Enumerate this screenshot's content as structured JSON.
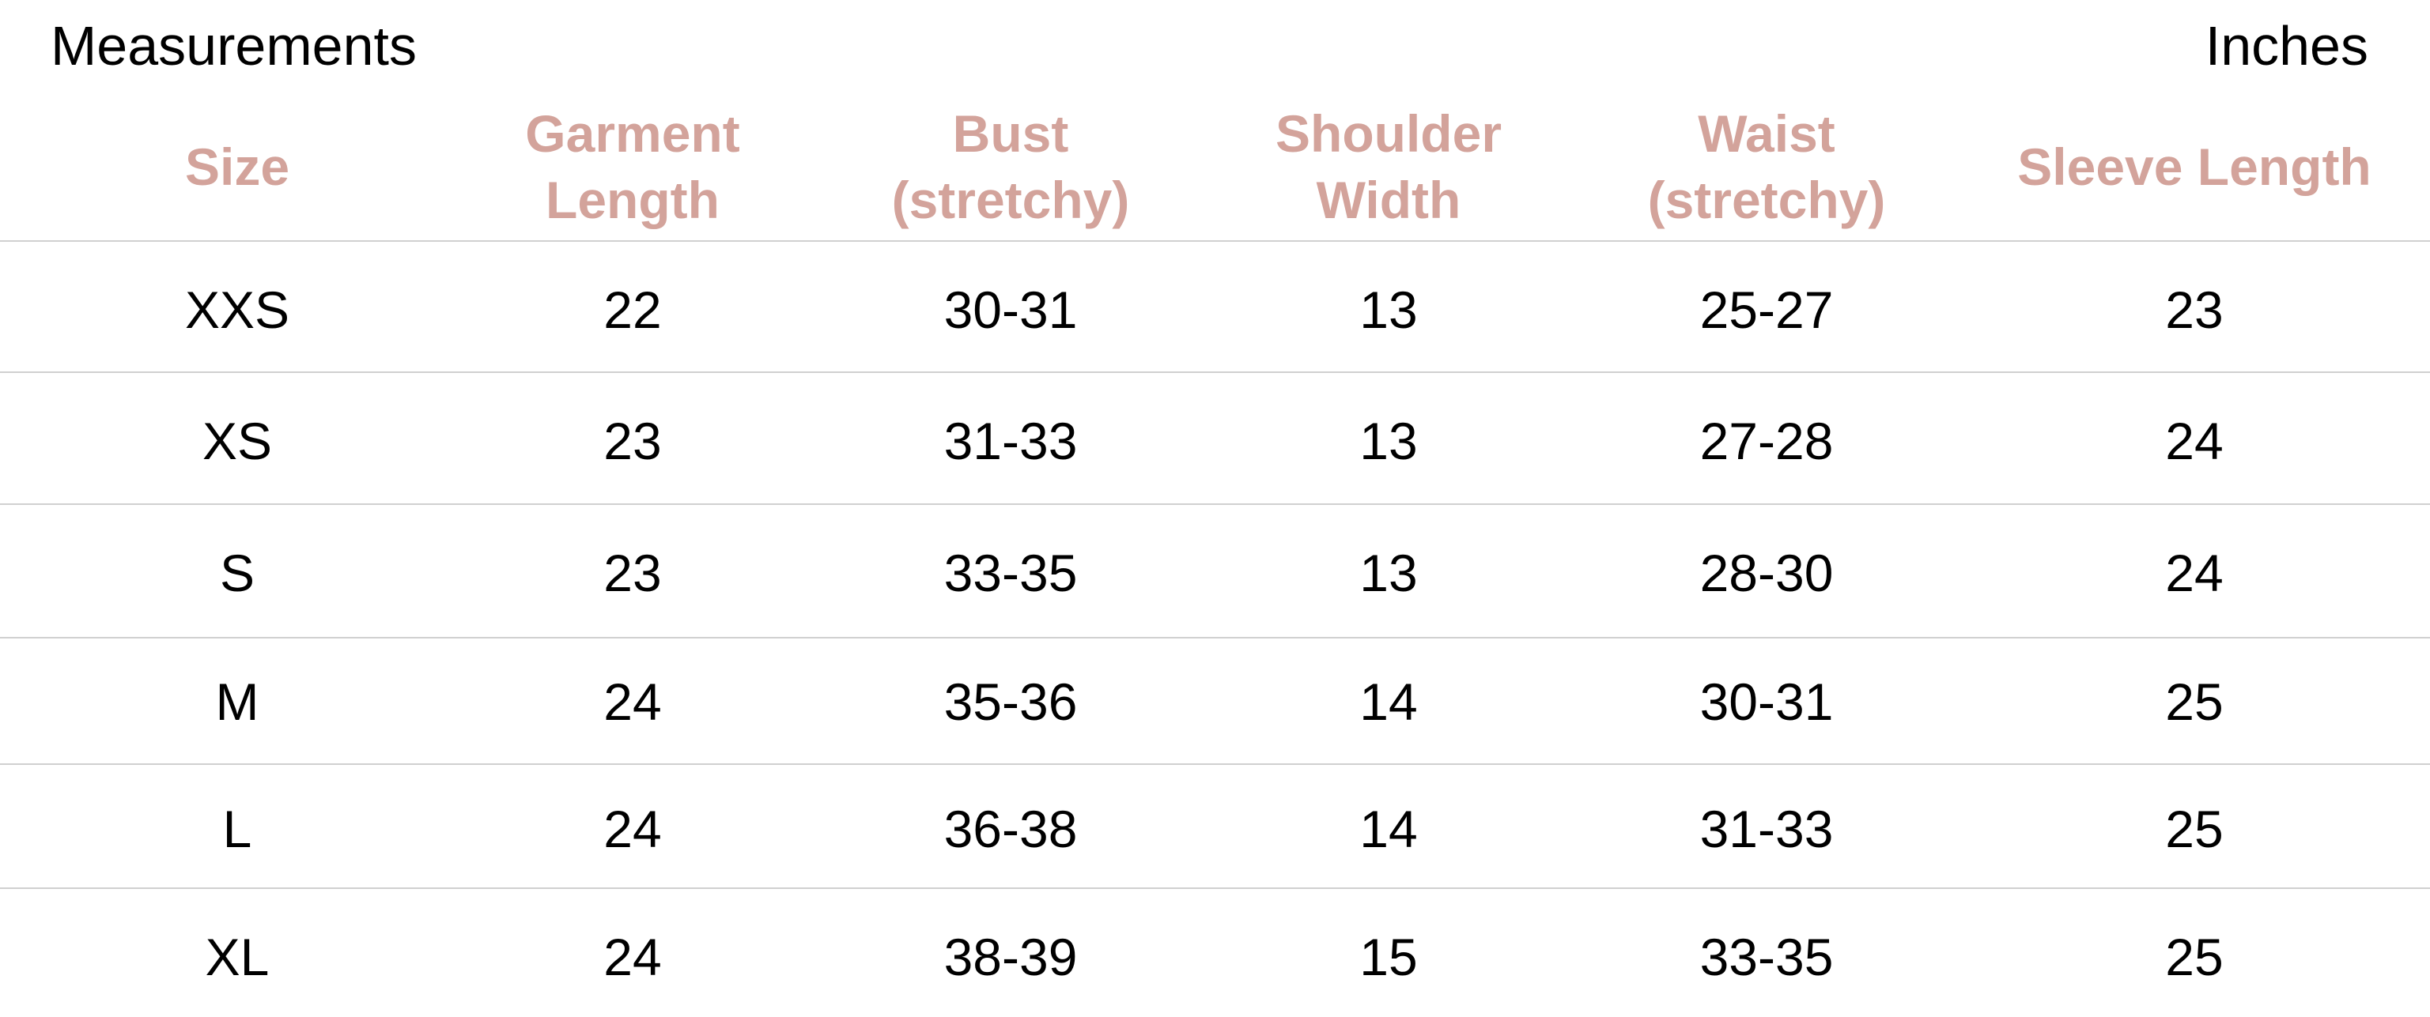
{
  "title": "Measurements",
  "unit": "Inches",
  "header_color": "#d3a39b",
  "columns": [
    {
      "line1": "Size",
      "line2": ""
    },
    {
      "line1": "Garment",
      "line2": "Length"
    },
    {
      "line1": "Bust",
      "line2": "(stretchy)"
    },
    {
      "line1": "Shoulder",
      "line2": "Width"
    },
    {
      "line1": "Waist",
      "line2": "(stretchy)"
    },
    {
      "line1": "Sleeve Length",
      "line2": ""
    }
  ],
  "rows": [
    [
      "XXS",
      "22",
      "30-31",
      "13",
      "25-27",
      "23"
    ],
    [
      "XS",
      "23",
      "31-33",
      "13",
      "27-28",
      "24"
    ],
    [
      "S",
      "23",
      "33-35",
      "13",
      "28-30",
      "24"
    ],
    [
      "M",
      "24",
      "35-36",
      "14",
      "30-31",
      "25"
    ],
    [
      "L",
      "24",
      "36-38",
      "14",
      "31-33",
      "25"
    ],
    [
      "XL",
      "24",
      "38-39",
      "15",
      "33-35",
      "25"
    ]
  ]
}
